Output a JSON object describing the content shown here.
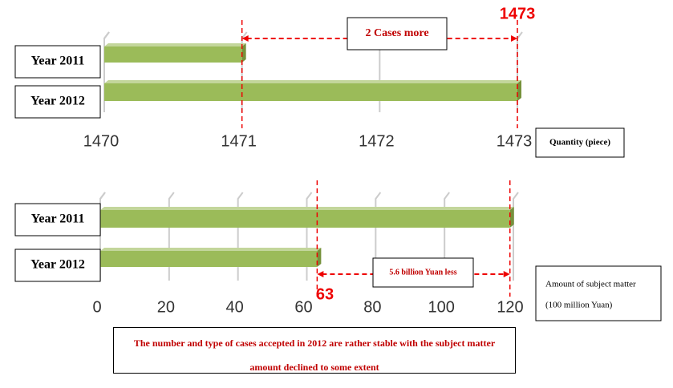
{
  "chart_data": [
    {
      "type": "bar",
      "orientation": "horizontal",
      "categories": [
        "Year 2011",
        "Year 2012"
      ],
      "values": [
        1471,
        1473
      ],
      "value_labels": [
        null,
        "1473"
      ],
      "color": "#9bbb59",
      "xlim": [
        1470,
        1473
      ],
      "xticks": [
        1470,
        1471,
        1472,
        1473
      ],
      "grid": true,
      "x_label": "Quantity (piece)",
      "annotation": "2 Cases more"
    },
    {
      "type": "bar",
      "orientation": "horizontal",
      "categories": [
        "Year 2011",
        "Year 2012"
      ],
      "values": [
        119,
        63
      ],
      "value_labels": [
        null,
        "63"
      ],
      "color": "#9bbb59",
      "xlim": [
        0,
        120
      ],
      "xticks": [
        0,
        20,
        40,
        60,
        80,
        100,
        120
      ],
      "grid": true,
      "x_label": [
        "Amount of subject matter",
        "(100 million Yuan)"
      ],
      "annotation": "5.6 billion Yuan less"
    }
  ],
  "caption": "The number and type of cases accepted in 2012 are rather stable with the subject matter amount declined to some extent"
}
